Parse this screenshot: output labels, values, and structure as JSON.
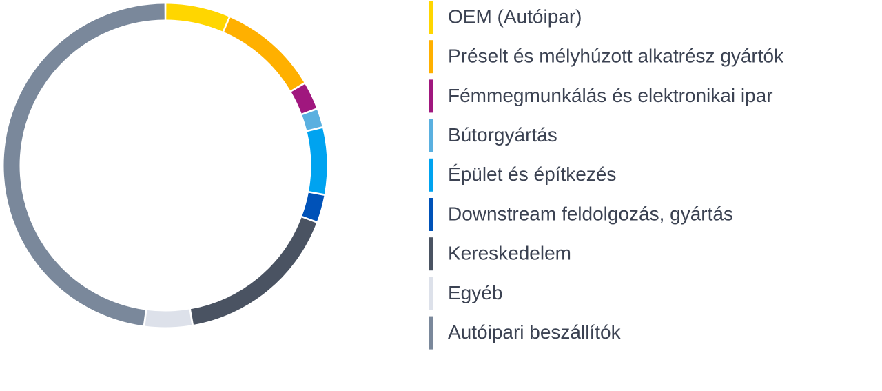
{
  "chart_data": {
    "type": "donut",
    "categories": [
      "OEM (Autóipar)",
      "Préselt és mélyhúzott alkatrész gyártók",
      "Fémmegmunkálás és elektronikai ipar",
      "Bútorgyártás",
      "Épület és építkezés",
      "Downstream feldolgozás, gyártás",
      "Kereskedelem",
      "Egyéb",
      "Autóipari beszállítók"
    ],
    "values": [
      6.5,
      10,
      2.8,
      1.9,
      6.7,
      2.8,
      16.6,
      4.8,
      47.9
    ],
    "colors": [
      "#ffd600",
      "#ffb000",
      "#a0177e",
      "#5ab0e0",
      "#00a3f0",
      "#0052b8",
      "#4a5362",
      "#dde1ea",
      "#7a889b"
    ],
    "legend": "right"
  }
}
